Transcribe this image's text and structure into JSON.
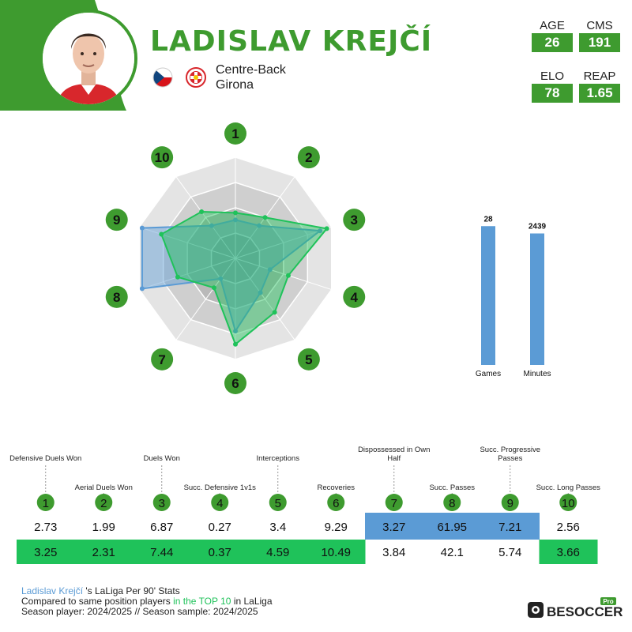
{
  "player": {
    "name": "LADISLAV KREJČÍ",
    "position": "Centre-Back",
    "team": "Girona",
    "flag_icon": "czech-flag-icon",
    "club_icon": "girona-badge-icon"
  },
  "stats": [
    {
      "label": "AGE",
      "value": "26"
    },
    {
      "label": "CMS",
      "value": "191"
    },
    {
      "label": "ELO",
      "value": "78"
    },
    {
      "label": "REAP",
      "value": "1.65"
    }
  ],
  "colors": {
    "brand_green": "#3e9b2f",
    "player_blue": "#5b9bd5",
    "top10_green": "#1fc25a"
  },
  "chart_data": [
    {
      "type": "radar",
      "axes": [
        "1",
        "2",
        "3",
        "4",
        "5",
        "6",
        "7",
        "8",
        "9",
        "10"
      ],
      "series": [
        {
          "color": "#5b9bd5",
          "values": [
            2.73,
            1.99,
            6.87,
            0.27,
            3.4,
            9.29,
            3.27,
            61.95,
            7.21,
            2.56
          ],
          "radius_fraction": [
            0.38,
            0.4,
            0.88,
            0.36,
            0.42,
            0.72,
            0.25,
            0.97,
            0.97,
            0.4
          ]
        },
        {
          "color": "#1fc25a",
          "values": [
            3.25,
            2.31,
            7.44,
            0.37,
            4.59,
            10.49,
            3.84,
            42.1,
            5.74,
            3.66
          ],
          "radius_fraction": [
            0.45,
            0.5,
            0.95,
            0.55,
            0.66,
            0.85,
            0.36,
            0.6,
            0.77,
            0.57
          ]
        }
      ],
      "rings": 4
    },
    {
      "type": "bar",
      "categories": [
        "Games",
        "Minutes"
      ],
      "values": [
        28,
        2439
      ],
      "value_labels": [
        "28",
        "2439"
      ],
      "fill_fraction": [
        0.95,
        0.9
      ],
      "color": "#5b9bd5"
    },
    {
      "type": "table",
      "columns": [
        {
          "num": "1",
          "label": "Defensive Duels Won",
          "player": "2.73",
          "top10": "3.25",
          "highlight": "top10"
        },
        {
          "num": "2",
          "label": "Aerial Duels Won",
          "player": "1.99",
          "top10": "2.31",
          "highlight": "top10"
        },
        {
          "num": "3",
          "label": "Duels Won",
          "player": "6.87",
          "top10": "7.44",
          "highlight": "top10"
        },
        {
          "num": "4",
          "label": "Succ. Defensive 1v1s",
          "player": "0.27",
          "top10": "0.37",
          "highlight": "top10"
        },
        {
          "num": "5",
          "label": "Interceptions",
          "player": "3.4",
          "top10": "4.59",
          "highlight": "top10"
        },
        {
          "num": "6",
          "label": "Recoveries",
          "player": "9.29",
          "top10": "10.49",
          "highlight": "top10"
        },
        {
          "num": "7",
          "label": "Dispossessed in Own Half",
          "player": "3.27",
          "top10": "3.84",
          "highlight": "player"
        },
        {
          "num": "8",
          "label": "Succ. Passes",
          "player": "61.95",
          "top10": "42.1",
          "highlight": "player"
        },
        {
          "num": "9",
          "label": "Succ. Progressive Passes",
          "player": "7.21",
          "top10": "5.74",
          "highlight": "player"
        },
        {
          "num": "10",
          "label": "Succ. Long Passes",
          "player": "2.56",
          "top10": "3.66",
          "highlight": "top10"
        }
      ]
    }
  ],
  "footer": {
    "player_name": "Ladislav Krejčí",
    "line1_rest": " 's LaLiga Per 90' Stats",
    "line2_pre": "Compared to same position players ",
    "line2_highlight": "in the TOP 10",
    "line2_post": " in LaLiga",
    "line3": "Season player: 2024/2025 // Season sample: 2024/2025"
  },
  "logo": {
    "text": "BESOCCER",
    "badge": "Pro"
  }
}
